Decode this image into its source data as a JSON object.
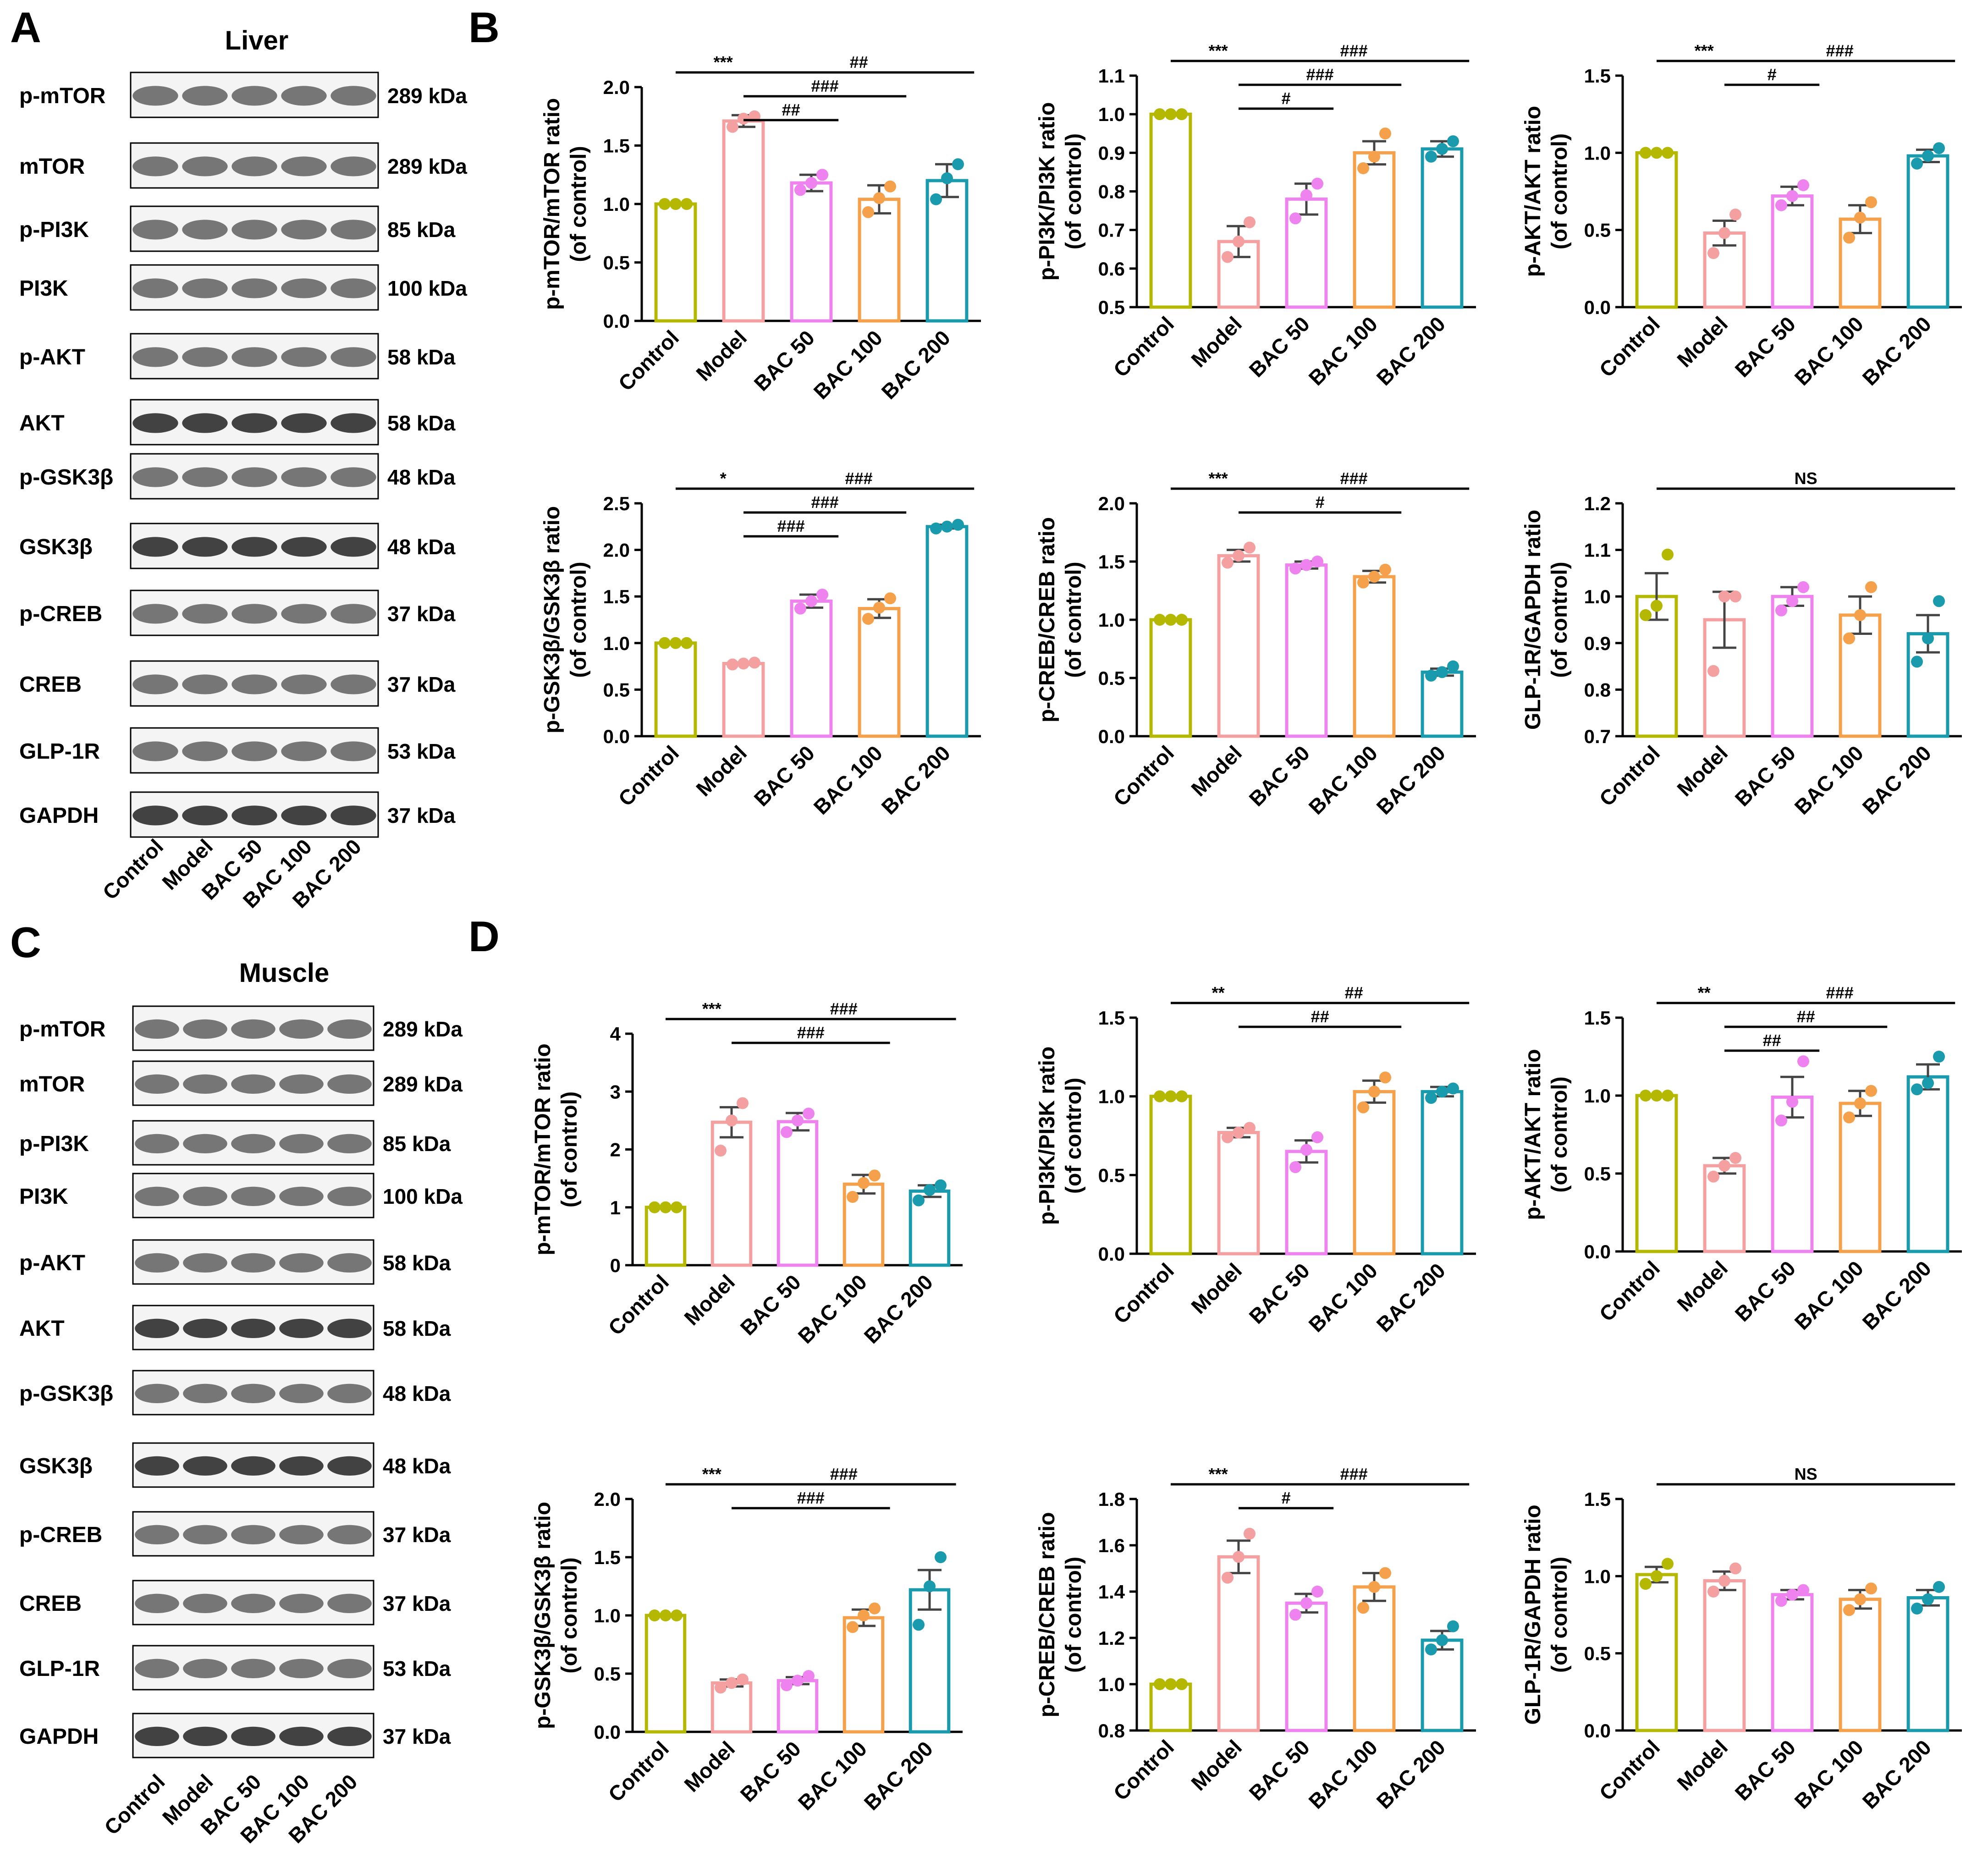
{
  "panels": [
    {
      "letter": "A",
      "title": "Liver"
    },
    {
      "letter": "B",
      "title": ""
    },
    {
      "letter": "C",
      "title": "Muscle"
    },
    {
      "letter": "D",
      "title": ""
    }
  ],
  "lane_labels": [
    "Control",
    "Model",
    "BAC 50",
    "BAC 100",
    "BAC 200"
  ],
  "blots": {
    "liver": [
      {
        "protein": "p-mTOR",
        "size": "289 kDa"
      },
      {
        "protein": "mTOR",
        "size": "289 kDa"
      },
      {
        "protein": "p-PI3K",
        "size": "85 kDa"
      },
      {
        "protein": "PI3K",
        "size": "100 kDa"
      },
      {
        "protein": "p-AKT",
        "size": "58 kDa"
      },
      {
        "protein": "AKT",
        "size": "58 kDa"
      },
      {
        "protein": "p-GSK3β",
        "size": "48 kDa"
      },
      {
        "protein": "GSK3β",
        "size": "48 kDa"
      },
      {
        "protein": "p-CREB",
        "size": "37 kDa"
      },
      {
        "protein": "CREB",
        "size": "37 kDa"
      },
      {
        "protein": "GLP-1R",
        "size": "53 kDa"
      },
      {
        "protein": "GAPDH",
        "size": "37 kDa"
      }
    ],
    "muscle": [
      {
        "protein": "p-mTOR",
        "size": "289 kDa"
      },
      {
        "protein": "mTOR",
        "size": "289 kDa"
      },
      {
        "protein": "p-PI3K",
        "size": "85 kDa"
      },
      {
        "protein": "PI3K",
        "size": "100 kDa"
      },
      {
        "protein": "p-AKT",
        "size": "58 kDa"
      },
      {
        "protein": "AKT",
        "size": "58 kDa"
      },
      {
        "protein": "p-GSK3β",
        "size": "48 kDa"
      },
      {
        "protein": "GSK3β",
        "size": "48 kDa"
      },
      {
        "protein": "p-CREB",
        "size": "37 kDa"
      },
      {
        "protein": "CREB",
        "size": "37 kDa"
      },
      {
        "protein": "GLP-1R",
        "size": "53 kDa"
      },
      {
        "protein": "GAPDH",
        "size": "37 kDa"
      }
    ]
  },
  "series_colors": [
    "#b5b800",
    "#f4a0a0",
    "#ee82ee",
    "#f5a04a",
    "#1a9aad"
  ],
  "chart_data": [
    {
      "panel": "B",
      "type": "bar",
      "ylabel": [
        "p-mTOR/mTOR ratio",
        "(of control)"
      ],
      "categories": [
        "Control",
        "Model",
        "BAC 50",
        "BAC 100",
        "BAC 200"
      ],
      "values": [
        1.0,
        1.71,
        1.18,
        1.04,
        1.2
      ],
      "sem": [
        0.01,
        0.05,
        0.07,
        0.12,
        0.14
      ],
      "points": [
        [
          1.0,
          1.0,
          1.0
        ],
        [
          1.66,
          1.73,
          1.75
        ],
        [
          1.12,
          1.18,
          1.25
        ],
        [
          0.93,
          1.05,
          1.15
        ],
        [
          1.04,
          1.22,
          1.34
        ]
      ],
      "ylim": [
        0,
        2.0
      ],
      "yticks": [
        "0.0",
        "0.5",
        "1.0",
        "1.5",
        "2.0"
      ],
      "sig": [
        {
          "from": 0,
          "to": 1,
          "label": "***"
        },
        {
          "from": 1,
          "to": 4,
          "label": "##"
        },
        {
          "from": 1,
          "to": 3,
          "label": "###"
        },
        {
          "from": 1,
          "to": 2,
          "label": "##"
        }
      ]
    },
    {
      "panel": "B",
      "type": "bar",
      "ylabel": [
        "p-PI3K/PI3K ratio",
        "(of control)"
      ],
      "categories": [
        "Control",
        "Model",
        "BAC 50",
        "BAC 100",
        "BAC 200"
      ],
      "values": [
        1.0,
        0.67,
        0.78,
        0.9,
        0.91
      ],
      "sem": [
        0.0,
        0.04,
        0.04,
        0.03,
        0.02
      ],
      "points": [
        [
          1.0,
          1.0,
          1.0
        ],
        [
          0.63,
          0.67,
          0.72
        ],
        [
          0.73,
          0.79,
          0.82
        ],
        [
          0.86,
          0.89,
          0.95
        ],
        [
          0.89,
          0.91,
          0.93
        ]
      ],
      "ylim": [
        0.5,
        1.1
      ],
      "yticks": [
        "0.5",
        "0.6",
        "0.7",
        "0.8",
        "0.9",
        "1.0",
        "1.1"
      ],
      "sig": [
        {
          "from": 0,
          "to": 1,
          "label": "***"
        },
        {
          "from": 1,
          "to": 4,
          "label": "###"
        },
        {
          "from": 1,
          "to": 3,
          "label": "###"
        },
        {
          "from": 1,
          "to": 2,
          "label": "#"
        }
      ]
    },
    {
      "panel": "B",
      "type": "bar",
      "ylabel": [
        "p-AKT/AKT ratio",
        "(of control)"
      ],
      "categories": [
        "Control",
        "Model",
        "BAC 50",
        "BAC 100",
        "BAC 200"
      ],
      "values": [
        1.0,
        0.48,
        0.72,
        0.57,
        0.98
      ],
      "sem": [
        0.0,
        0.08,
        0.06,
        0.09,
        0.04
      ],
      "points": [
        [
          1.0,
          1.0,
          1.0
        ],
        [
          0.35,
          0.48,
          0.6
        ],
        [
          0.66,
          0.72,
          0.79
        ],
        [
          0.45,
          0.58,
          0.68
        ],
        [
          0.93,
          0.98,
          1.03
        ]
      ],
      "ylim": [
        0,
        1.5
      ],
      "yticks": [
        "0.0",
        "0.5",
        "1.0",
        "1.5"
      ],
      "sig": [
        {
          "from": 0,
          "to": 1,
          "label": "***"
        },
        {
          "from": 1,
          "to": 4,
          "label": "###"
        },
        {
          "from": 1,
          "to": 2,
          "label": "#"
        }
      ]
    },
    {
      "panel": "B",
      "type": "bar",
      "ylabel": [
        "p-GSK3β/GSK3β ratio",
        "(of control)"
      ],
      "categories": [
        "Control",
        "Model",
        "BAC 50",
        "BAC 100",
        "BAC 200"
      ],
      "values": [
        1.0,
        0.78,
        1.45,
        1.37,
        2.25
      ],
      "sem": [
        0.0,
        0.01,
        0.07,
        0.1,
        0.02
      ],
      "points": [
        [
          1.0,
          1.0,
          1.0
        ],
        [
          0.77,
          0.78,
          0.79
        ],
        [
          1.37,
          1.45,
          1.52
        ],
        [
          1.26,
          1.38,
          1.48
        ],
        [
          2.23,
          2.25,
          2.27
        ]
      ],
      "ylim": [
        0,
        2.5
      ],
      "yticks": [
        "0.0",
        "0.5",
        "1.0",
        "1.5",
        "2.0",
        "2.5"
      ],
      "sig": [
        {
          "from": 0,
          "to": 1,
          "label": "*"
        },
        {
          "from": 1,
          "to": 4,
          "label": "###"
        },
        {
          "from": 1,
          "to": 3,
          "label": "###"
        },
        {
          "from": 1,
          "to": 2,
          "label": "###"
        }
      ]
    },
    {
      "panel": "B",
      "type": "bar",
      "ylabel": [
        "p-CREB/CREB ratio",
        "(of control)"
      ],
      "categories": [
        "Control",
        "Model",
        "BAC 50",
        "BAC 100",
        "BAC 200"
      ],
      "values": [
        1.0,
        1.55,
        1.47,
        1.37,
        0.55
      ],
      "sem": [
        0.0,
        0.05,
        0.03,
        0.05,
        0.03
      ],
      "points": [
        [
          1.0,
          1.0,
          1.0
        ],
        [
          1.49,
          1.55,
          1.62
        ],
        [
          1.44,
          1.47,
          1.5
        ],
        [
          1.32,
          1.37,
          1.43
        ],
        [
          0.52,
          0.55,
          0.6
        ]
      ],
      "ylim": [
        0,
        2.0
      ],
      "yticks": [
        "0.0",
        "0.5",
        "1.0",
        "1.5",
        "2.0"
      ],
      "sig": [
        {
          "from": 0,
          "to": 1,
          "label": "***"
        },
        {
          "from": 1,
          "to": 4,
          "label": "###"
        },
        {
          "from": 1,
          "to": 3,
          "label": "#"
        }
      ]
    },
    {
      "panel": "B",
      "type": "bar",
      "ylabel": [
        "GLP-1R/GAPDH ratio",
        "(of control)"
      ],
      "categories": [
        "Control",
        "Model",
        "BAC 50",
        "BAC 100",
        "BAC 200"
      ],
      "values": [
        1.0,
        0.95,
        1.0,
        0.96,
        0.92
      ],
      "sem": [
        0.05,
        0.06,
        0.02,
        0.04,
        0.04
      ],
      "points": [
        [
          0.96,
          0.98,
          1.09
        ],
        [
          0.84,
          1.0,
          1.0
        ],
        [
          0.97,
          0.99,
          1.02
        ],
        [
          0.91,
          0.96,
          1.02
        ],
        [
          0.86,
          0.91,
          0.99
        ]
      ],
      "ylim": [
        0.7,
        1.2
      ],
      "yticks": [
        "0.7",
        "0.8",
        "0.9",
        "1.0",
        "1.1",
        "1.2"
      ],
      "sig": [
        {
          "from": 0,
          "to": 4,
          "label": "NS"
        }
      ]
    },
    {
      "panel": "D",
      "type": "bar",
      "ylabel": [
        "p-mTOR/mTOR ratio",
        "(of control)"
      ],
      "categories": [
        "Control",
        "Model",
        "BAC 50",
        "BAC 100",
        "BAC 200"
      ],
      "values": [
        1.0,
        2.47,
        2.48,
        1.4,
        1.28
      ],
      "sem": [
        0.0,
        0.26,
        0.15,
        0.16,
        0.1
      ],
      "points": [
        [
          1.0,
          1.0,
          1.0
        ],
        [
          1.98,
          2.5,
          2.8
        ],
        [
          2.3,
          2.5,
          2.62
        ],
        [
          1.18,
          1.42,
          1.55
        ],
        [
          1.12,
          1.3,
          1.38
        ]
      ],
      "ylim": [
        0,
        4
      ],
      "yticks": [
        "0",
        "1",
        "2",
        "3",
        "4"
      ],
      "sig": [
        {
          "from": 0,
          "to": 1,
          "label": "***"
        },
        {
          "from": 1,
          "to": 4,
          "label": "###"
        },
        {
          "from": 1,
          "to": 3,
          "label": "###"
        }
      ]
    },
    {
      "panel": "D",
      "type": "bar",
      "ylabel": [
        "p-PI3K/PI3K ratio",
        "(of control)"
      ],
      "categories": [
        "Control",
        "Model",
        "BAC 50",
        "BAC 100",
        "BAC 200"
      ],
      "values": [
        1.0,
        0.77,
        0.65,
        1.03,
        1.03
      ],
      "sem": [
        0.0,
        0.03,
        0.07,
        0.07,
        0.03
      ],
      "points": [
        [
          1.0,
          1.0,
          1.0
        ],
        [
          0.74,
          0.77,
          0.8
        ],
        [
          0.55,
          0.66,
          0.74
        ],
        [
          0.93,
          1.03,
          1.12
        ],
        [
          0.99,
          1.03,
          1.05
        ]
      ],
      "ylim": [
        0,
        1.5
      ],
      "yticks": [
        "0.0",
        "0.5",
        "1.0",
        "1.5"
      ],
      "sig": [
        {
          "from": 0,
          "to": 1,
          "label": "**"
        },
        {
          "from": 1,
          "to": 4,
          "label": "##"
        },
        {
          "from": 1,
          "to": 3,
          "label": "##"
        }
      ]
    },
    {
      "panel": "D",
      "type": "bar",
      "ylabel": [
        "p-AKT/AKT ratio",
        "(of control)"
      ],
      "categories": [
        "Control",
        "Model",
        "BAC 50",
        "BAC 100",
        "BAC 200"
      ],
      "values": [
        1.0,
        0.55,
        0.99,
        0.95,
        1.12
      ],
      "sem": [
        0.0,
        0.05,
        0.13,
        0.08,
        0.08
      ],
      "points": [
        [
          1.0,
          1.0,
          1.0
        ],
        [
          0.48,
          0.55,
          0.6
        ],
        [
          0.84,
          0.96,
          1.22
        ],
        [
          0.86,
          0.95,
          1.03
        ],
        [
          1.04,
          1.08,
          1.25
        ]
      ],
      "ylim": [
        0,
        1.5
      ],
      "yticks": [
        "0.0",
        "0.5",
        "1.0",
        "1.5"
      ],
      "sig": [
        {
          "from": 0,
          "to": 1,
          "label": "**"
        },
        {
          "from": 1,
          "to": 4,
          "label": "###"
        },
        {
          "from": 1,
          "to": 3,
          "label": "##"
        },
        {
          "from": 1,
          "to": 2,
          "label": "##"
        }
      ]
    },
    {
      "panel": "D",
      "type": "bar",
      "ylabel": [
        "p-GSK3β/GSK3β ratio",
        "(of control)"
      ],
      "categories": [
        "Control",
        "Model",
        "BAC 50",
        "BAC 100",
        "BAC 200"
      ],
      "values": [
        1.0,
        0.42,
        0.44,
        0.98,
        1.22
      ],
      "sem": [
        0.0,
        0.03,
        0.03,
        0.07,
        0.17
      ],
      "points": [
        [
          1.0,
          1.0,
          1.0
        ],
        [
          0.38,
          0.42,
          0.45
        ],
        [
          0.4,
          0.44,
          0.48
        ],
        [
          0.9,
          1.0,
          1.06
        ],
        [
          0.92,
          1.25,
          1.5
        ]
      ],
      "ylim": [
        0,
        2.0
      ],
      "yticks": [
        "0.0",
        "0.5",
        "1.0",
        "1.5",
        "2.0"
      ],
      "sig": [
        {
          "from": 0,
          "to": 1,
          "label": "***"
        },
        {
          "from": 1,
          "to": 4,
          "label": "###"
        },
        {
          "from": 1,
          "to": 3,
          "label": "###"
        }
      ]
    },
    {
      "panel": "D",
      "type": "bar",
      "ylabel": [
        "p-CREB/CREB ratio",
        "(of control)"
      ],
      "categories": [
        "Control",
        "Model",
        "BAC 50",
        "BAC 100",
        "BAC 200"
      ],
      "values": [
        1.0,
        1.55,
        1.35,
        1.42,
        1.19
      ],
      "sem": [
        0.0,
        0.07,
        0.04,
        0.06,
        0.04
      ],
      "points": [
        [
          1.0,
          1.0,
          1.0
        ],
        [
          1.46,
          1.55,
          1.65
        ],
        [
          1.3,
          1.35,
          1.4
        ],
        [
          1.33,
          1.42,
          1.48
        ],
        [
          1.15,
          1.19,
          1.25
        ]
      ],
      "ylim": [
        0.8,
        1.8
      ],
      "yticks": [
        "0.8",
        "1.0",
        "1.2",
        "1.4",
        "1.6",
        "1.8"
      ],
      "sig": [
        {
          "from": 0,
          "to": 1,
          "label": "***"
        },
        {
          "from": 1,
          "to": 4,
          "label": "###"
        },
        {
          "from": 1,
          "to": 2,
          "label": "#"
        }
      ]
    },
    {
      "panel": "D",
      "type": "bar",
      "ylabel": [
        "GLP-1R/GAPDH ratio",
        "(of control)"
      ],
      "categories": [
        "Control",
        "Model",
        "BAC 50",
        "BAC 100",
        "BAC 200"
      ],
      "values": [
        1.01,
        0.97,
        0.88,
        0.85,
        0.86
      ],
      "sem": [
        0.05,
        0.06,
        0.03,
        0.06,
        0.05
      ],
      "points": [
        [
          0.95,
          1.0,
          1.08
        ],
        [
          0.9,
          0.97,
          1.05
        ],
        [
          0.84,
          0.88,
          0.91
        ],
        [
          0.78,
          0.85,
          0.92
        ],
        [
          0.79,
          0.85,
          0.93
        ]
      ],
      "ylim": [
        0,
        1.5
      ],
      "yticks": [
        "0.0",
        "0.5",
        "1.0",
        "1.5"
      ],
      "sig": [
        {
          "from": 0,
          "to": 4,
          "label": "NS"
        }
      ]
    }
  ]
}
